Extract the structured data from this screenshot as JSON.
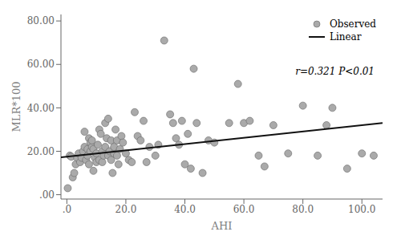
{
  "chart_data": {
    "type": "scatter",
    "xlabel": "AHI",
    "ylabel": "MLR*100",
    "annotation": "r=0.321 P<0.01",
    "xlim": [
      -2,
      107
    ],
    "ylim": [
      -2,
      83
    ],
    "xticks": [
      {
        "value": 0,
        "label": ".0"
      },
      {
        "value": 20,
        "label": "20.0"
      },
      {
        "value": 40,
        "label": "40.0"
      },
      {
        "value": 60,
        "label": "60.0"
      },
      {
        "value": 80,
        "label": "80.0"
      },
      {
        "value": 100,
        "label": "100.0"
      }
    ],
    "yticks": [
      {
        "value": 0,
        "label": ".00"
      },
      {
        "value": 20,
        "label": "20.00"
      },
      {
        "value": 40,
        "label": "40.00"
      },
      {
        "value": 60,
        "label": "60.00"
      },
      {
        "value": 80,
        "label": "80.00"
      }
    ],
    "grid": false,
    "legend": "upper right",
    "series": [
      {
        "name": "Observed",
        "type": "scatter",
        "color": "#aaaaaa",
        "marker": "circle",
        "x": [
          0.3,
          1.0,
          1.5,
          2.0,
          2.5,
          3.0,
          3.5,
          4.0,
          4.5,
          5.0,
          5.5,
          6.0,
          6.0,
          6.5,
          7.0,
          7.0,
          7.5,
          7.5,
          8.0,
          8.0,
          8.5,
          8.5,
          9.0,
          9.0,
          9.5,
          10.0,
          10.0,
          10.5,
          11.0,
          11.0,
          11.5,
          12.0,
          12.0,
          12.5,
          13.0,
          13.0,
          13.5,
          14.0,
          14.0,
          14.5,
          15.0,
          15.0,
          15.5,
          16.0,
          16.0,
          16.5,
          17.0,
          17.0,
          17.5,
          18.0,
          18.5,
          19.0,
          20.0,
          21.0,
          22.0,
          23.0,
          24.0,
          25.0,
          26.0,
          27.0,
          28.0,
          30.0,
          31.0,
          33.0,
          35.0,
          36.0,
          37.0,
          38.0,
          39.0,
          40.0,
          41.0,
          42.0,
          43.0,
          44.0,
          46.0,
          48.0,
          50.0,
          55.0,
          58.0,
          60.0,
          62.0,
          65.0,
          67.0,
          70.0,
          75.0,
          80.0,
          85.0,
          88.0,
          90.0,
          95.0,
          100.0,
          104.0
        ],
        "values": [
          3.0,
          18.0,
          17.5,
          8.0,
          10.0,
          14.0,
          17.0,
          19.0,
          15.0,
          17.0,
          20.0,
          29.0,
          22.0,
          16.0,
          21.0,
          18.0,
          14.0,
          26.0,
          24.0,
          20.0,
          22.0,
          25.0,
          21.0,
          11.0,
          17.0,
          15.0,
          19.0,
          23.0,
          30.0,
          16.0,
          28.0,
          20.0,
          15.0,
          18.0,
          22.0,
          33.0,
          26.0,
          18.0,
          35.0,
          20.0,
          16.0,
          25.0,
          10.0,
          19.0,
          22.0,
          30.0,
          25.0,
          18.0,
          14.0,
          21.0,
          27.0,
          24.0,
          19.0,
          16.0,
          15.0,
          38.0,
          27.0,
          25.0,
          34.0,
          15.0,
          22.0,
          18.0,
          23.0,
          71.0,
          37.0,
          33.0,
          26.0,
          23.0,
          34.0,
          14.0,
          28.0,
          12.0,
          58.0,
          33.0,
          10.0,
          25.0,
          24.0,
          33.0,
          51.0,
          33.0,
          34.0,
          18.0,
          13.0,
          32.0,
          19.0,
          41.0,
          18.0,
          32.0,
          40.0,
          12.0,
          19.0,
          18.0
        ]
      },
      {
        "name": "Linear",
        "type": "line",
        "color": "#111111",
        "line_style": "solid",
        "x": [
          -2,
          107
        ],
        "values": [
          17.21,
          33.015
        ]
      }
    ]
  }
}
